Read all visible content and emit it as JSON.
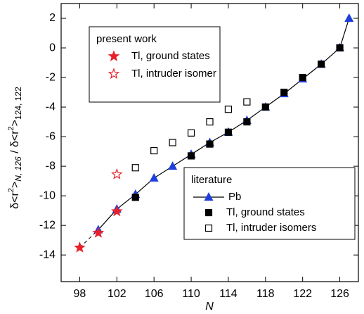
{
  "chart_data": {
    "type": "scatter",
    "xlabel": "N",
    "ylabel_parts": [
      "δ<r",
      "2",
      ">",
      "N, 126",
      " / δ<r",
      "2",
      ">",
      "124, 122"
    ],
    "xlim": [
      96,
      128
    ],
    "ylim": [
      -15.8,
      3
    ],
    "xticks": [
      98,
      102,
      106,
      110,
      114,
      118,
      122,
      126
    ],
    "yticks": [
      -14,
      -12,
      -10,
      -8,
      -6,
      -4,
      -2,
      0,
      2
    ],
    "groups": [
      {
        "title": "present work",
        "series": [
          {
            "name": "Tl, ground states",
            "color": "#e8202a",
            "marker": "star",
            "x": [
              98,
              100,
              102
            ],
            "values": [
              -13.5,
              -12.5,
              -11.05
            ]
          },
          {
            "name": "Tl, intruder isomer",
            "color": "#e8202a",
            "marker": "star-open",
            "x": [
              102
            ],
            "values": [
              -8.55
            ]
          }
        ]
      },
      {
        "title": "literature",
        "series": [
          {
            "name": "Pb",
            "color": "#1f3fdd",
            "marker": "triangle",
            "line": true,
            "x": [
              100,
              102,
              104,
              106,
              108,
              110,
              112,
              114,
              116,
              118,
              120,
              122,
              124,
              126,
              127
            ],
            "values": [
              -12.3,
              -10.9,
              -9.9,
              -8.8,
              -8.0,
              -7.2,
              -6.4,
              -5.7,
              -4.9,
              -4.0,
              -3.1,
              -2.1,
              -1.1,
              0,
              2.0
            ]
          },
          {
            "name": "Tl, ground states",
            "color": "#000000",
            "marker": "square",
            "x": [
              104,
              110,
              112,
              114,
              116,
              118,
              120,
              122,
              124,
              126
            ],
            "values": [
              -10.1,
              -7.3,
              -6.5,
              -5.7,
              -5.0,
              -4.0,
              -3.0,
              -2.0,
              -1.1,
              0
            ]
          },
          {
            "name": "Tl, intruder isomers",
            "color": "#000000",
            "marker": "square-open",
            "x": [
              104,
              106,
              108,
              110,
              112,
              114,
              116
            ],
            "values": [
              -8.1,
              -6.95,
              -6.4,
              -5.75,
              -5.0,
              -4.15,
              -3.65
            ]
          }
        ]
      }
    ]
  }
}
